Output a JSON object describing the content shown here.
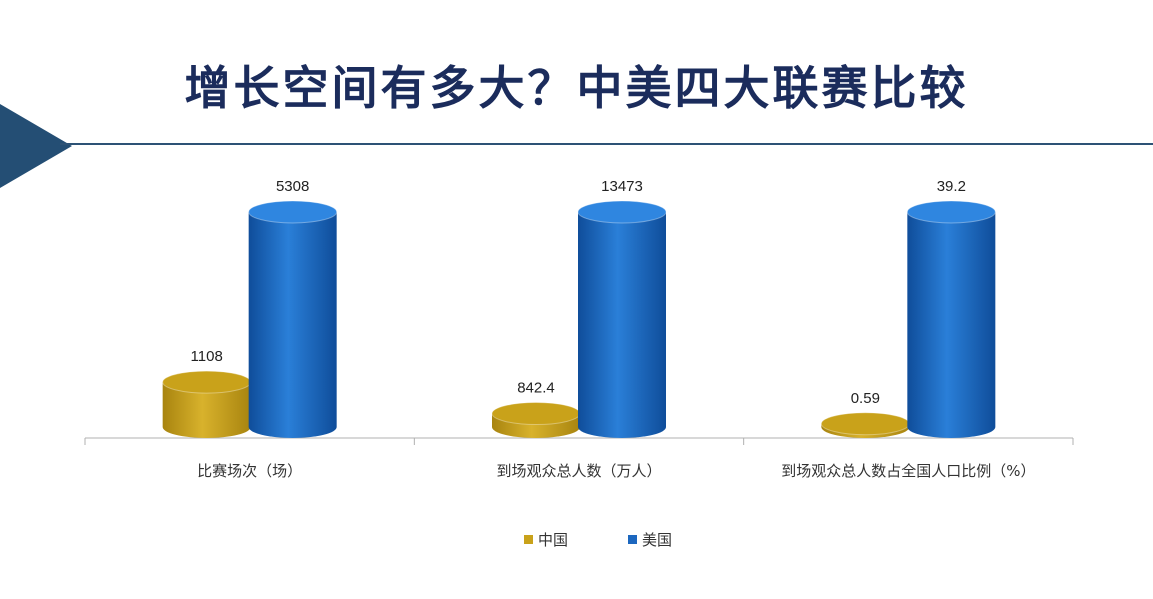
{
  "title": "增长空间有多大？中美四大联赛比较",
  "colors": {
    "china": "#c9a21a",
    "usa": "#1c67bf",
    "title": "#1b2c5c",
    "accent": "#244e74"
  },
  "chart_data": {
    "type": "bar",
    "style": "3d-cylinder",
    "categories": [
      "比赛场次（场）",
      "到场观众总人数（万人）",
      "到场观众总人数占全国人口比例（%）"
    ],
    "series": [
      {
        "name": "中国",
        "values": [
          1108,
          842.4,
          0.59
        ],
        "labels": [
          "1108",
          "842.4",
          "0.59"
        ]
      },
      {
        "name": "美国",
        "values": [
          5308,
          13473,
          39.2
        ],
        "labels": [
          "5308",
          "13473",
          "39.2"
        ]
      }
    ],
    "legend": {
      "position": "bottom-center",
      "items": [
        "中国",
        "美国"
      ]
    },
    "grid": false
  }
}
